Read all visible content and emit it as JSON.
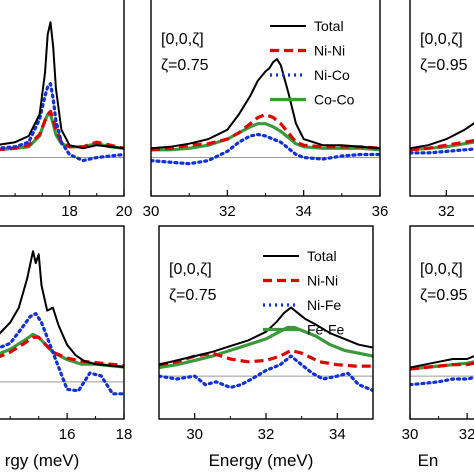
{
  "colors": {
    "Total": "#000000",
    "Ni-Ni": "#e00000",
    "Ni-Co": "#1030d8",
    "Ni-Fe": "#1030d8",
    "Co-Co": "#3a9a3a",
    "Fe-Fe": "#3a9a3a",
    "baseline": "#9a9a9a"
  },
  "chart_data": [
    {
      "type": "line",
      "panel": "top-left",
      "xlim": [
        15.3,
        20
      ],
      "xticks": [
        "18",
        "20"
      ],
      "annotation": [],
      "legend": false,
      "series": [
        {
          "name": "Total",
          "style": "solid",
          "x": [
            15.3,
            16,
            16.5,
            16.9,
            17.1,
            17.2,
            17.3,
            17.4,
            17.5,
            17.7,
            18,
            18.5,
            19,
            19.5,
            20
          ],
          "y": [
            0.08,
            0.1,
            0.14,
            0.28,
            0.55,
            0.8,
            0.88,
            0.72,
            0.45,
            0.18,
            0.08,
            0.06,
            0.08,
            0.07,
            0.06
          ]
        },
        {
          "name": "Ni-Ni",
          "style": "dashed",
          "x": [
            15.3,
            16,
            16.5,
            16.9,
            17.1,
            17.2,
            17.3,
            17.4,
            17.5,
            17.7,
            18,
            18.5,
            19,
            19.5,
            20
          ],
          "y": [
            0.05,
            0.06,
            0.08,
            0.15,
            0.24,
            0.28,
            0.3,
            0.25,
            0.18,
            0.1,
            0.07,
            0.07,
            0.1,
            0.08,
            0.06
          ]
        },
        {
          "name": "Ni-Co",
          "style": "dotted",
          "x": [
            15.3,
            16,
            16.5,
            16.9,
            17.1,
            17.2,
            17.3,
            17.4,
            17.5,
            17.7,
            18,
            18.5,
            19,
            19.5,
            20
          ],
          "y": [
            0.06,
            0.07,
            0.1,
            0.25,
            0.4,
            0.46,
            0.48,
            0.38,
            0.24,
            0.1,
            0.02,
            -0.02,
            0.0,
            0.01,
            0.02
          ]
        },
        {
          "name": "Co-Co",
          "style": "solid",
          "x": [
            15.3,
            16,
            16.5,
            16.9,
            17.1,
            17.2,
            17.3,
            17.4,
            17.5,
            17.7,
            18,
            18.5,
            19,
            19.5,
            20
          ],
          "y": [
            0.05,
            0.06,
            0.07,
            0.14,
            0.24,
            0.28,
            0.28,
            0.22,
            0.15,
            0.09,
            0.07,
            0.07,
            0.09,
            0.07,
            0.06
          ]
        }
      ]
    },
    {
      "type": "line",
      "panel": "top-middle",
      "xlim": [
        30,
        36
      ],
      "xticks": [
        "30",
        "32",
        "34",
        "36"
      ],
      "annotation": [
        "[0,0,ζ]",
        "ζ=0.75"
      ],
      "legend": true,
      "series": [
        {
          "name": "Total",
          "style": "solid",
          "x": [
            30,
            30.5,
            31,
            31.5,
            32,
            32.3,
            32.6,
            32.8,
            33,
            33.1,
            33.2,
            33.3,
            33.4,
            33.6,
            33.8,
            34,
            34.5,
            35,
            35.5,
            36
          ],
          "y": [
            0.06,
            0.07,
            0.09,
            0.12,
            0.18,
            0.28,
            0.4,
            0.5,
            0.56,
            0.58,
            0.62,
            0.64,
            0.6,
            0.42,
            0.22,
            0.12,
            0.08,
            0.08,
            0.07,
            0.06
          ]
        },
        {
          "name": "Ni-Ni",
          "style": "dashed",
          "x": [
            30,
            30.5,
            31,
            31.5,
            32,
            32.3,
            32.6,
            32.8,
            33,
            33.2,
            33.4,
            33.6,
            33.8,
            34,
            34.5,
            35,
            35.5,
            36
          ],
          "y": [
            0.05,
            0.06,
            0.08,
            0.09,
            0.12,
            0.16,
            0.22,
            0.26,
            0.28,
            0.26,
            0.22,
            0.16,
            0.1,
            0.08,
            0.07,
            0.07,
            0.07,
            0.06
          ]
        },
        {
          "name": "Ni-Co",
          "style": "dotted",
          "x": [
            30,
            30.5,
            31,
            31.5,
            32,
            32.3,
            32.6,
            32.8,
            33,
            33.2,
            33.4,
            33.6,
            33.8,
            34,
            34.5,
            35,
            35.5,
            36
          ],
          "y": [
            -0.02,
            -0.03,
            -0.04,
            -0.02,
            0.04,
            0.1,
            0.14,
            0.15,
            0.14,
            0.12,
            0.1,
            0.06,
            0.02,
            0.0,
            -0.01,
            0.01,
            0.02,
            0.02
          ]
        },
        {
          "name": "Co-Co",
          "style": "solid",
          "x": [
            30,
            30.5,
            31,
            31.5,
            32,
            32.3,
            32.6,
            32.8,
            33,
            33.2,
            33.4,
            33.6,
            33.8,
            34,
            34.5,
            35,
            35.5,
            36
          ],
          "y": [
            0.05,
            0.05,
            0.06,
            0.08,
            0.12,
            0.16,
            0.2,
            0.22,
            0.22,
            0.2,
            0.17,
            0.13,
            0.09,
            0.07,
            0.06,
            0.06,
            0.06,
            0.05
          ]
        }
      ]
    },
    {
      "type": "line",
      "panel": "top-right",
      "xlim": [
        31,
        33.2
      ],
      "xticks": [
        "32"
      ],
      "annotation": [
        "[0,0,ζ]",
        "ζ=0.95"
      ],
      "legend": false,
      "series": [
        {
          "name": "Total",
          "style": "solid",
          "x": [
            31,
            31.5,
            32,
            32.5,
            33,
            33.2
          ],
          "y": [
            0.06,
            0.08,
            0.12,
            0.18,
            0.26,
            0.3
          ]
        },
        {
          "name": "Ni-Ni",
          "style": "dashed",
          "x": [
            31,
            31.5,
            32,
            32.5,
            33,
            33.2
          ],
          "y": [
            0.05,
            0.06,
            0.08,
            0.1,
            0.12,
            0.13
          ]
        },
        {
          "name": "Ni-Co",
          "style": "dotted",
          "x": [
            31,
            31.5,
            32,
            32.5,
            33,
            33.2
          ],
          "y": [
            0.03,
            0.03,
            0.04,
            0.05,
            0.06,
            0.06
          ]
        },
        {
          "name": "Co-Co",
          "style": "solid",
          "x": [
            31,
            31.5,
            32,
            32.5,
            33,
            33.2
          ],
          "y": [
            0.05,
            0.06,
            0.07,
            0.09,
            0.11,
            0.12
          ]
        }
      ]
    },
    {
      "type": "line",
      "panel": "bottom-left",
      "xlim": [
        13.5,
        18
      ],
      "xticks": [
        "16",
        "18"
      ],
      "xlabel": "rgy (meV)",
      "annotation": [],
      "legend": false,
      "series": [
        {
          "name": "Total",
          "style": "solid",
          "x": [
            13.5,
            14,
            14.3,
            14.6,
            14.8,
            14.9,
            15,
            15.1,
            15.3,
            15.5,
            15.7,
            16,
            16.3,
            16.6,
            17,
            17.5,
            18
          ],
          "y": [
            0.3,
            0.4,
            0.5,
            0.7,
            0.88,
            0.8,
            0.86,
            0.65,
            0.48,
            0.5,
            0.38,
            0.25,
            0.18,
            0.14,
            0.12,
            0.11,
            0.1
          ]
        },
        {
          "name": "Ni-Ni",
          "style": "dashed",
          "x": [
            13.5,
            14,
            14.5,
            14.8,
            15,
            15.2,
            15.5,
            16,
            16.5,
            17,
            17.5,
            18
          ],
          "y": [
            0.16,
            0.2,
            0.26,
            0.3,
            0.3,
            0.26,
            0.2,
            0.16,
            0.14,
            0.13,
            0.12,
            0.11
          ]
        },
        {
          "name": "Ni-Fe",
          "style": "dotted",
          "x": [
            13.5,
            14,
            14.4,
            14.7,
            14.9,
            15.1,
            15.3,
            15.5,
            15.8,
            16,
            16.4,
            16.8,
            17.2,
            17.6,
            18
          ],
          "y": [
            0.22,
            0.26,
            0.36,
            0.44,
            0.46,
            0.4,
            0.3,
            0.2,
            0.05,
            -0.05,
            -0.06,
            0.06,
            0.04,
            -0.08,
            -0.08
          ]
        },
        {
          "name": "Fe-Fe",
          "style": "solid",
          "x": [
            13.5,
            14,
            14.5,
            14.8,
            15,
            15.2,
            15.5,
            16,
            16.5,
            17,
            17.5,
            18
          ],
          "y": [
            0.18,
            0.22,
            0.28,
            0.32,
            0.3,
            0.26,
            0.2,
            0.15,
            0.12,
            0.12,
            0.11,
            0.1
          ]
        }
      ]
    },
    {
      "type": "line",
      "panel": "bottom-middle",
      "xlim": [
        29,
        35
      ],
      "xticks": [
        "30",
        "32",
        "34"
      ],
      "xlabel": "Energy (meV)",
      "annotation": [
        "[0,0,ζ]",
        "ζ=0.75"
      ],
      "legend": true,
      "series": [
        {
          "name": "Total",
          "style": "solid",
          "x": [
            29,
            29.5,
            30,
            30.5,
            31,
            31.5,
            32,
            32.3,
            32.5,
            32.7,
            32.9,
            33.1,
            33.4,
            33.8,
            34.2,
            34.6,
            35
          ],
          "y": [
            0.08,
            0.11,
            0.14,
            0.17,
            0.21,
            0.25,
            0.31,
            0.38,
            0.44,
            0.48,
            0.44,
            0.4,
            0.36,
            0.3,
            0.26,
            0.22,
            0.2
          ]
        },
        {
          "name": "Ni-Ni",
          "style": "dashed",
          "x": [
            29,
            29.5,
            30,
            30.5,
            31,
            31.5,
            32,
            32.4,
            32.7,
            33,
            33.5,
            34,
            34.5,
            35
          ],
          "y": [
            0.08,
            0.1,
            0.14,
            0.16,
            0.12,
            0.1,
            0.11,
            0.14,
            0.18,
            0.16,
            0.1,
            0.08,
            0.07,
            0.07
          ]
        },
        {
          "name": "Ni-Fe",
          "style": "dotted",
          "x": [
            29,
            29.5,
            30,
            30.3,
            30.6,
            31,
            31.3,
            31.6,
            32,
            32.4,
            32.7,
            33,
            33.3,
            33.6,
            34,
            34.3,
            34.6,
            35
          ],
          "y": [
            0.0,
            -0.02,
            0.0,
            -0.06,
            -0.04,
            -0.08,
            -0.06,
            -0.02,
            0.04,
            0.08,
            0.14,
            0.08,
            0.02,
            -0.02,
            0.0,
            0.02,
            -0.06,
            -0.1
          ]
        },
        {
          "name": "Fe-Fe",
          "style": "solid",
          "x": [
            29,
            29.5,
            30,
            30.5,
            31,
            31.5,
            32,
            32.3,
            32.6,
            32.8,
            33,
            33.4,
            33.8,
            34.2,
            34.6,
            35
          ],
          "y": [
            0.06,
            0.08,
            0.11,
            0.14,
            0.18,
            0.22,
            0.26,
            0.3,
            0.34,
            0.34,
            0.32,
            0.28,
            0.22,
            0.18,
            0.16,
            0.14
          ]
        }
      ]
    },
    {
      "type": "line",
      "panel": "bottom-right",
      "xlim": [
        30,
        32.8
      ],
      "xticks": [
        "30",
        "32"
      ],
      "xlabel": "En",
      "annotation": [
        "[0,0,ζ]",
        "ζ=0.95"
      ],
      "legend": false,
      "series": [
        {
          "name": "Total",
          "style": "solid",
          "x": [
            30,
            30.5,
            31,
            31.5,
            32,
            32.5,
            32.8
          ],
          "y": [
            0.06,
            0.08,
            0.1,
            0.12,
            0.12,
            0.16,
            0.2
          ]
        },
        {
          "name": "Ni-Ni",
          "style": "dashed",
          "x": [
            30,
            30.5,
            31,
            31.5,
            32,
            32.5,
            32.8
          ],
          "y": [
            0.05,
            0.06,
            0.07,
            0.08,
            0.08,
            0.1,
            0.12
          ]
        },
        {
          "name": "Ni-Fe",
          "style": "dotted",
          "x": [
            30,
            30.5,
            31,
            31.5,
            32,
            32.5,
            32.8
          ],
          "y": [
            -0.06,
            -0.05,
            -0.04,
            -0.02,
            -0.02,
            0.0,
            0.02
          ]
        },
        {
          "name": "Fe-Fe",
          "style": "solid",
          "x": [
            30,
            30.5,
            31,
            31.5,
            32,
            32.5,
            32.8
          ],
          "y": [
            0.05,
            0.06,
            0.07,
            0.08,
            0.09,
            0.11,
            0.13
          ]
        }
      ]
    }
  ]
}
